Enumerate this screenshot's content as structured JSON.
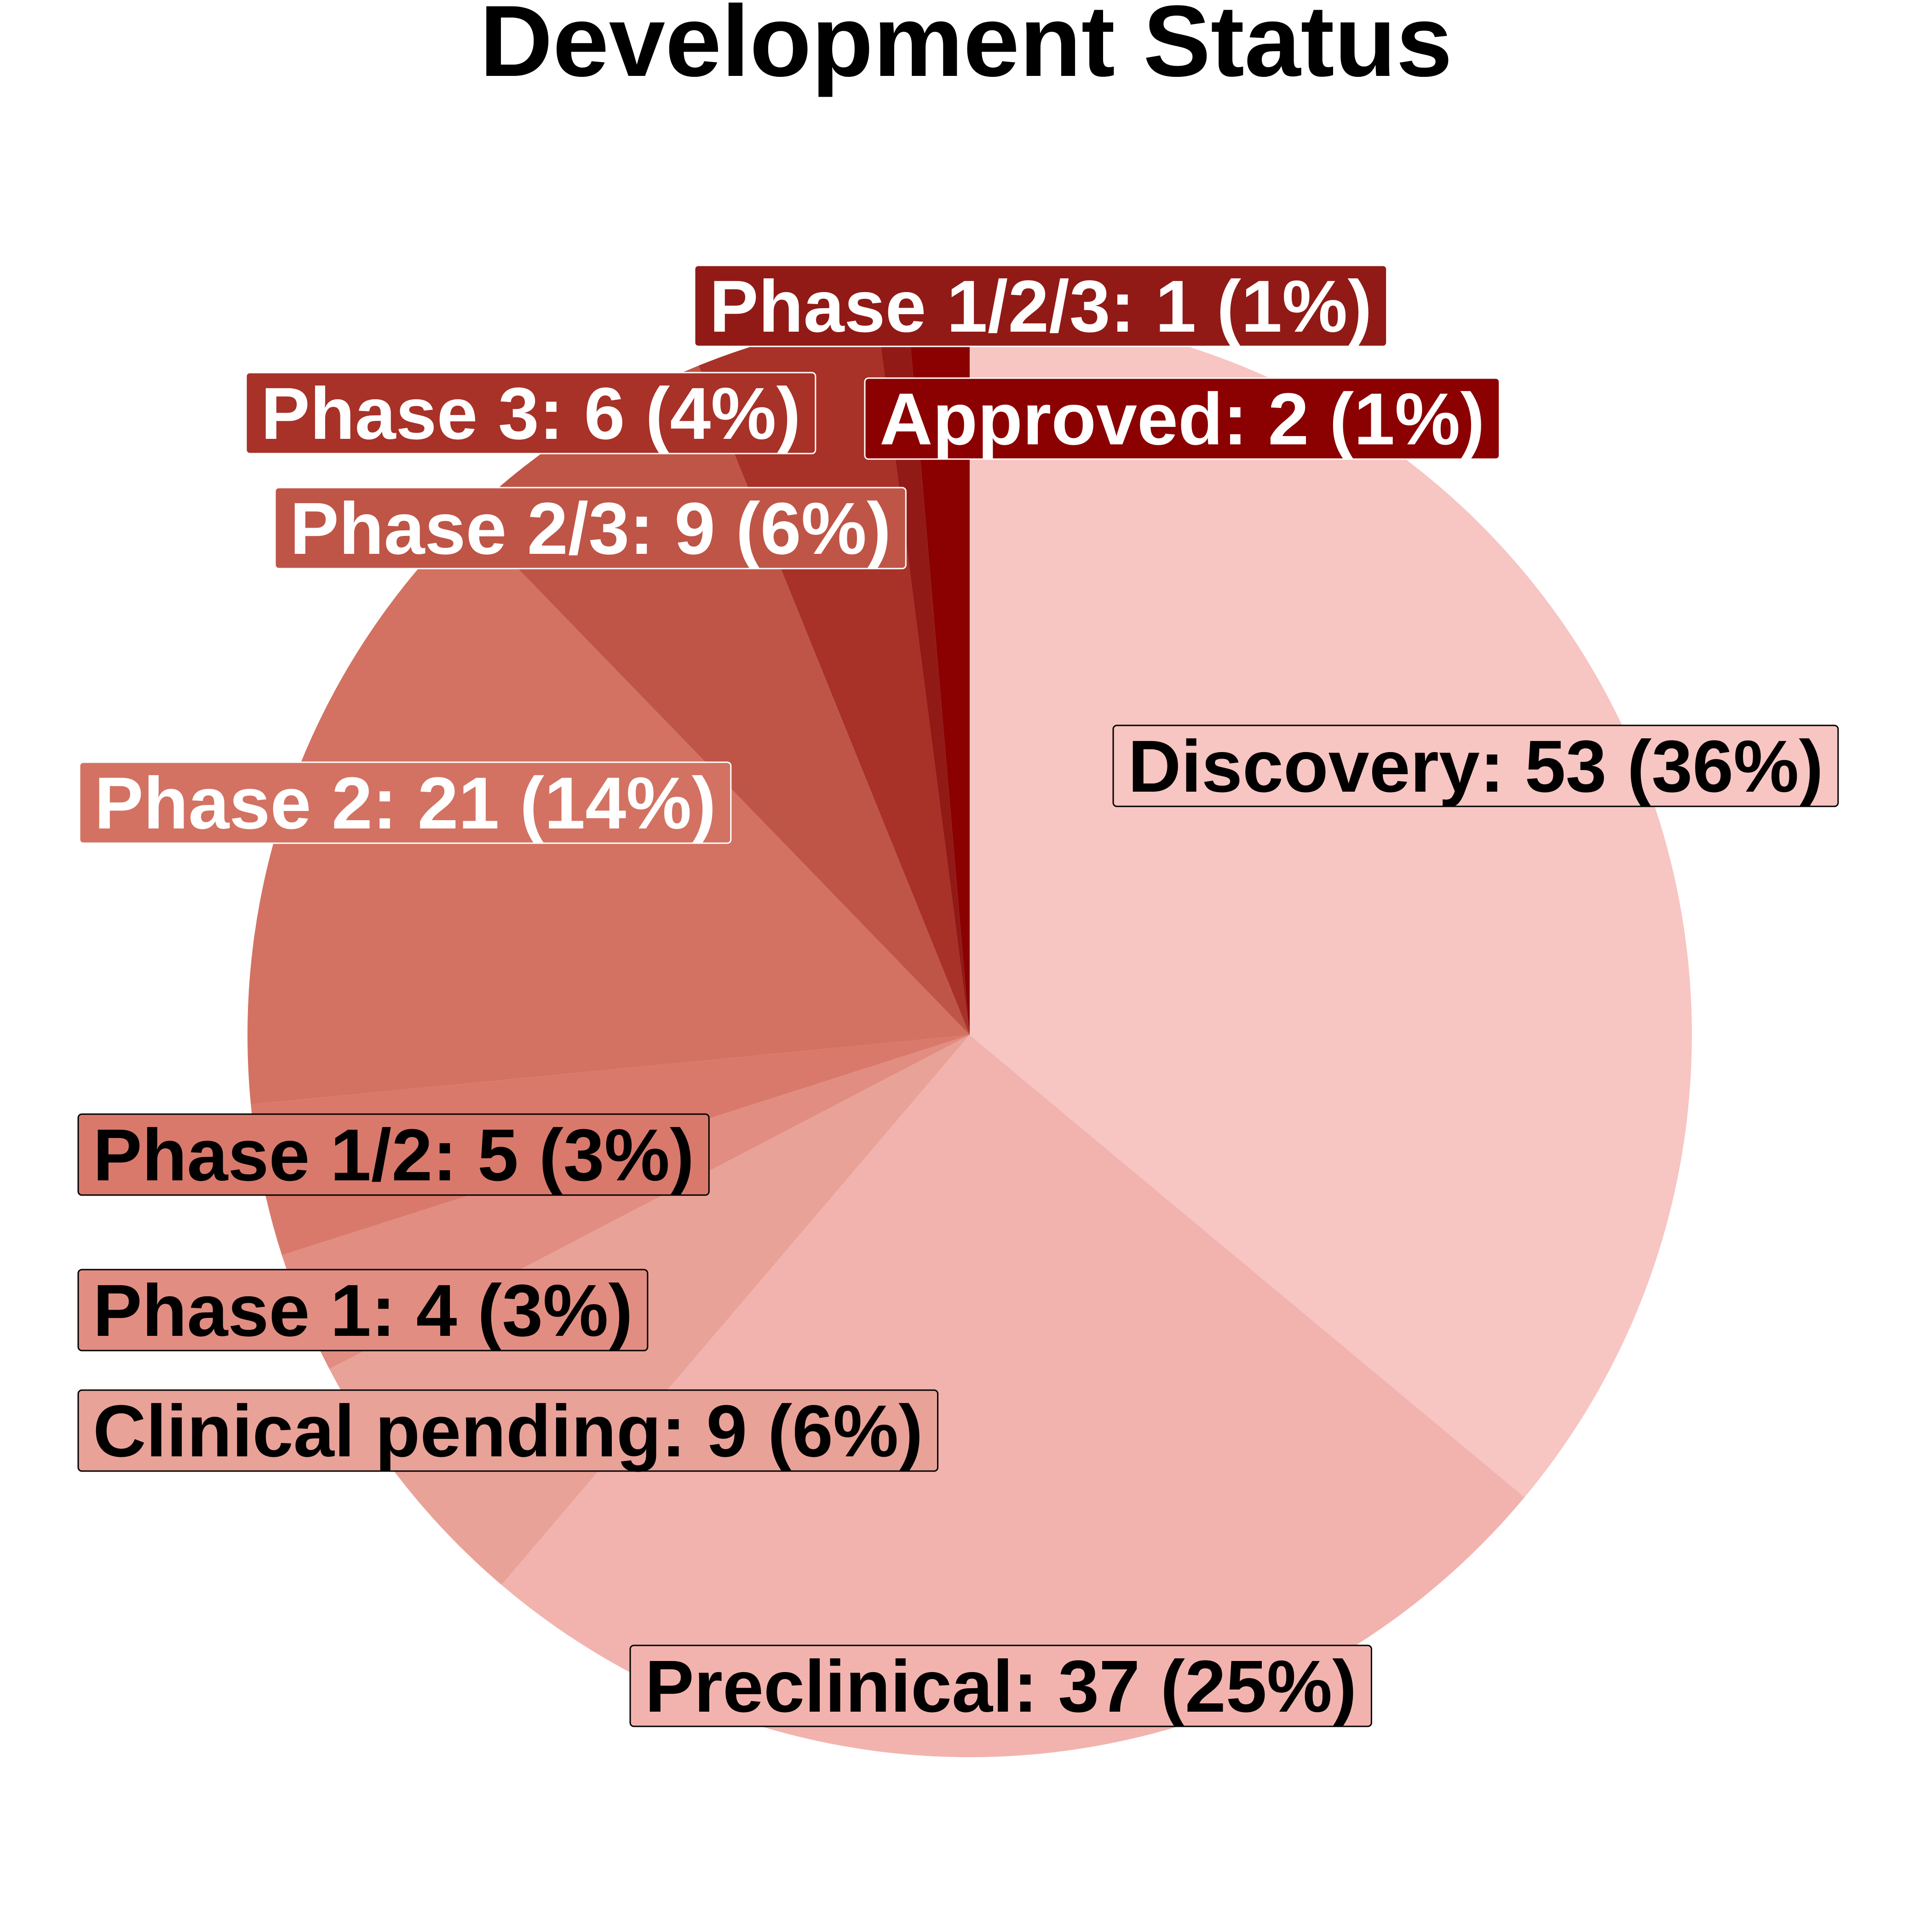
{
  "chart_data": {
    "type": "pie",
    "title": "Development Status",
    "start": "12 o'clock",
    "direction": "clockwise",
    "slices": [
      {
        "label": "Discovery",
        "value": 53,
        "percent": "36%",
        "color": "#f7c5c2",
        "text_color": "#000000"
      },
      {
        "label": "Preclinical",
        "value": 37,
        "percent": "25%",
        "color": "#f2b3ae",
        "text_color": "#000000"
      },
      {
        "label": "Clinical pending",
        "value": 9,
        "percent": "6%",
        "color": "#e9a298",
        "text_color": "#000000"
      },
      {
        "label": "Phase 1",
        "value": 4,
        "percent": "3%",
        "color": "#e28d82",
        "text_color": "#000000"
      },
      {
        "label": "Phase 1/2",
        "value": 5,
        "percent": "3%",
        "color": "#d9796c",
        "text_color": "#000000"
      },
      {
        "label": "Phase 2",
        "value": 21,
        "percent": "14%",
        "color": "#d37262",
        "text_color": "#ffffff"
      },
      {
        "label": "Phase 2/3",
        "value": 9,
        "percent": "6%",
        "color": "#bf5547",
        "text_color": "#ffffff"
      },
      {
        "label": "Phase 3",
        "value": 6,
        "percent": "4%",
        "color": "#a83128",
        "text_color": "#ffffff"
      },
      {
        "label": "Phase 1/2/3",
        "value": 1,
        "percent": "1%",
        "color": "#911a16",
        "text_color": "#ffffff"
      },
      {
        "label": "Approved",
        "value": 2,
        "percent": "1%",
        "color": "#8b0000",
        "text_color": "#ffffff"
      }
    ]
  }
}
